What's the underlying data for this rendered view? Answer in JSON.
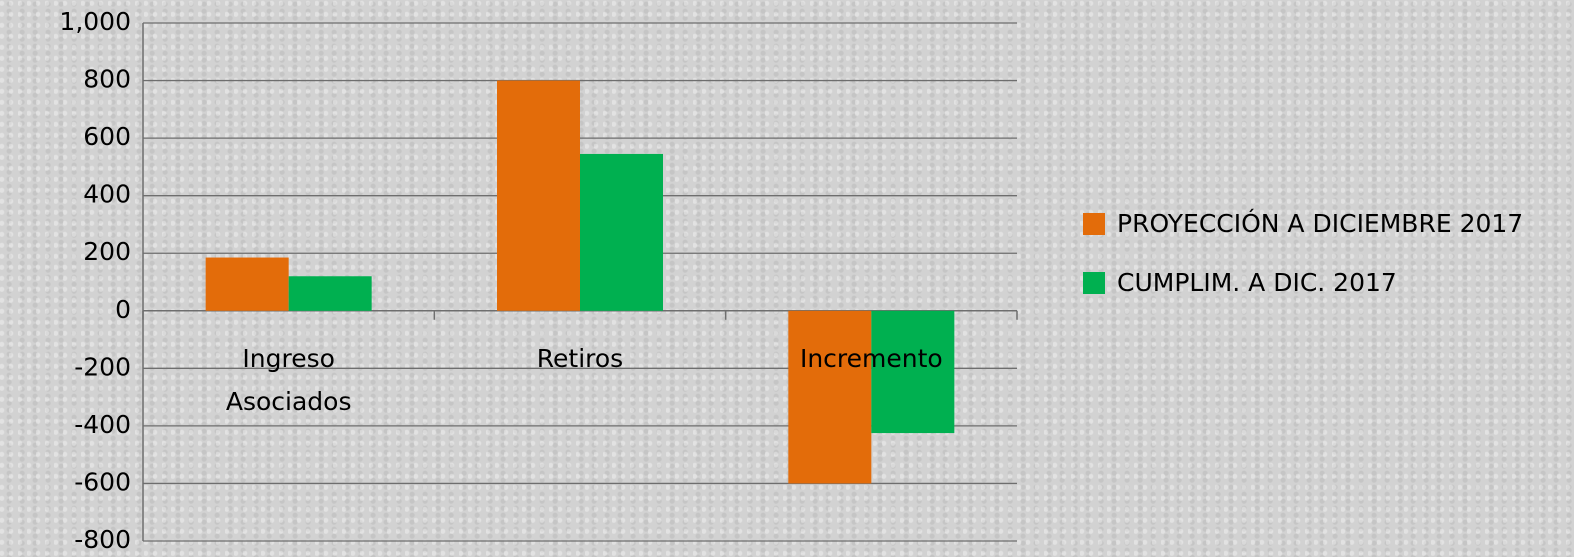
{
  "chart_data": {
    "type": "bar",
    "categories": [
      "Ingreso Asociados",
      "Retiros",
      "Incremento"
    ],
    "series": [
      {
        "name": "PROYECCIÓN A DICIEMBRE 2017",
        "color": "#e36c0a",
        "values": [
          185,
          800,
          -600
        ]
      },
      {
        "name": "CUMPLIM. A DIC. 2017",
        "color": "#00b050",
        "values": [
          120,
          545,
          -425
        ]
      }
    ],
    "ylim": [
      -800,
      1000
    ],
    "yticks": [
      -800,
      -600,
      -400,
      -200,
      0,
      200,
      400,
      600,
      800,
      {
        "value": 1000,
        "label": "1,000"
      }
    ],
    "grid": true,
    "legend": "right"
  }
}
